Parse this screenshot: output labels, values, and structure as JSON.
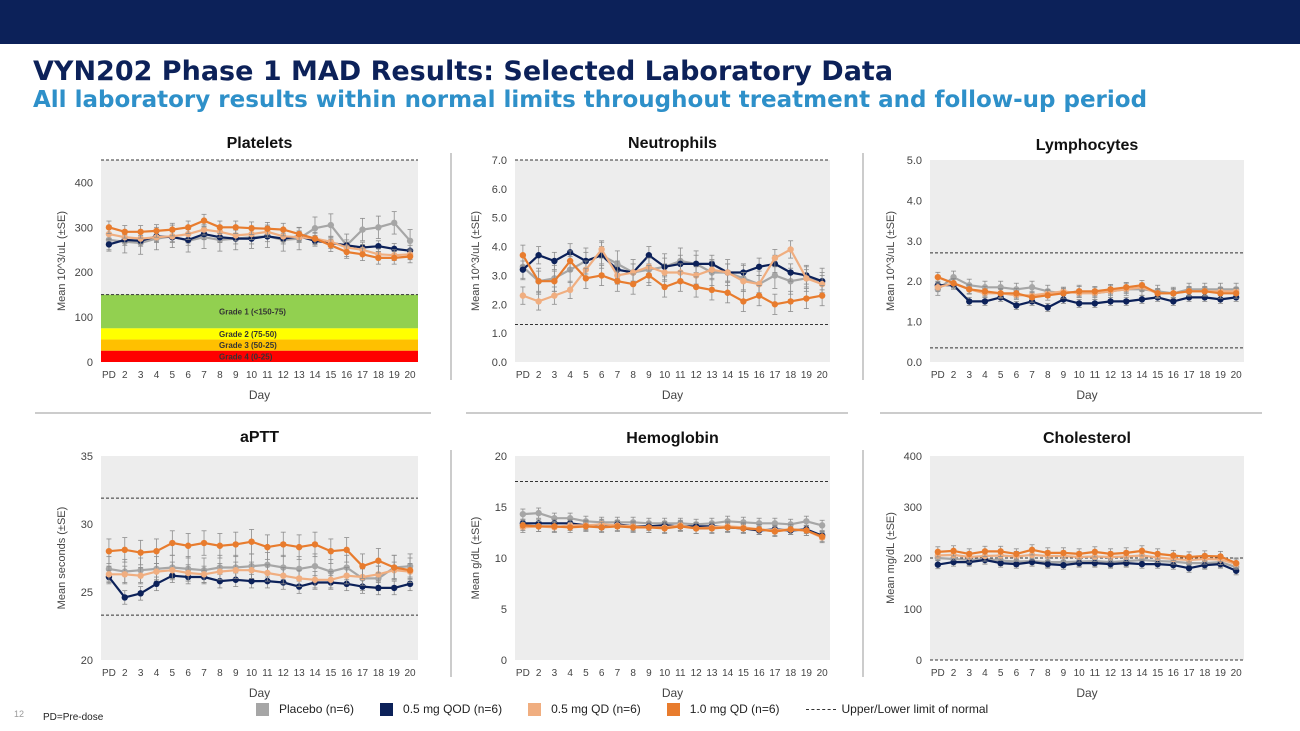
{
  "header": {
    "title": "VYN202 Phase 1 MAD Results:  Selected Laboratory Data",
    "subtitle": "All laboratory results within normal limits throughout treatment and follow-up period"
  },
  "footer": {
    "slide_number": "12",
    "note": "PD=Pre-dose"
  },
  "legend": {
    "items": [
      {
        "label": "Placebo (n=6)",
        "color": "#a6a6a6"
      },
      {
        "label": "0.5 mg QOD (n=6)",
        "color": "#0c2159"
      },
      {
        "label": "0.5 mg QD (n=6)",
        "color": "#f0ae80"
      },
      {
        "label": "1.0 mg QD (n=6)",
        "color": "#e87c2e"
      }
    ],
    "limit_label": "Upper/Lower limit of normal"
  },
  "colors": {
    "placebo": "#a6a6a6",
    "qod_05": "#0c2159",
    "qd_05": "#f0ae80",
    "qd_10": "#e87c2e",
    "plot_bg": "#ededed"
  },
  "chart_data": [
    {
      "type": "line",
      "title": "Platelets",
      "xlabel": "Day",
      "ylabel": "Mean 10^3/uL (±SE)",
      "x": [
        "PD",
        "2",
        "3",
        "4",
        "5",
        "6",
        "7",
        "8",
        "9",
        "10",
        "11",
        "12",
        "13",
        "14",
        "15",
        "16",
        "17",
        "18",
        "19",
        "20"
      ],
      "yticks": [
        "0",
        "100",
        "200",
        "300",
        "400"
      ],
      "ylim": [
        0,
        450
      ],
      "reference_lines": [
        450,
        150
      ],
      "grade_bands": [
        {
          "label": "Grade 1 (<150-75)",
          "from": 75,
          "to": 150,
          "color": "#92d050"
        },
        {
          "label": "Grade 2 (75-50)",
          "from": 50,
          "to": 75,
          "color": "#ffff00"
        },
        {
          "label": "Grade 3 (50-25)",
          "from": 25,
          "to": 50,
          "color": "#ffc000"
        },
        {
          "label": "Grade 4 (0-25)",
          "from": 0,
          "to": 25,
          "color": "#ff0000"
        }
      ],
      "series": [
        {
          "name": "Placebo (n=6)",
          "values": [
            272,
            268,
            265,
            275,
            280,
            270,
            278,
            272,
            275,
            278,
            280,
            272,
            275,
            298,
            305,
            260,
            295,
            300,
            310,
            270
          ],
          "se": 25
        },
        {
          "name": "0.5 mg QOD (n=6)",
          "values": [
            262,
            272,
            270,
            280,
            278,
            272,
            285,
            278,
            275,
            275,
            280,
            275,
            280,
            270,
            265,
            260,
            255,
            258,
            252,
            248
          ],
          "se": 12
        },
        {
          "name": "0.5 mg QD (n=6)",
          "values": [
            285,
            278,
            275,
            278,
            280,
            285,
            295,
            290,
            282,
            285,
            290,
            280,
            278,
            275,
            268,
            255,
            250,
            240,
            238,
            240
          ],
          "se": 12
        },
        {
          "name": "1.0 mg QD (n=6)",
          "values": [
            300,
            290,
            290,
            292,
            295,
            300,
            315,
            300,
            300,
            298,
            297,
            295,
            285,
            275,
            260,
            245,
            240,
            232,
            232,
            235
          ],
          "se": 14
        }
      ]
    },
    {
      "type": "line",
      "title": "Neutrophils",
      "xlabel": "Day",
      "ylabel": "Mean 10^3/uL (±SE)",
      "x": [
        "PD",
        "2",
        "3",
        "4",
        "5",
        "6",
        "7",
        "8",
        "9",
        "10",
        "11",
        "12",
        "13",
        "14",
        "15",
        "16",
        "17",
        "18",
        "19",
        "20"
      ],
      "yticks": [
        "0.0",
        "1.0",
        "2.0",
        "3.0",
        "4.0",
        "5.0",
        "6.0",
        "7.0"
      ],
      "ylim": [
        0,
        7
      ],
      "reference_lines": [
        7.0,
        1.3
      ],
      "series": [
        {
          "name": "Placebo (n=6)",
          "values": [
            3.3,
            2.8,
            2.9,
            3.2,
            3.5,
            3.7,
            3.4,
            3.1,
            3.2,
            3.3,
            3.5,
            3.4,
            3.1,
            3.1,
            2.9,
            2.7,
            3.0,
            2.8,
            2.9,
            2.8
          ],
          "se": 0.45
        },
        {
          "name": "0.5 mg QOD (n=6)",
          "values": [
            3.2,
            3.7,
            3.5,
            3.8,
            3.5,
            3.7,
            3.2,
            3.1,
            3.7,
            3.3,
            3.4,
            3.4,
            3.4,
            3.1,
            3.1,
            3.3,
            3.4,
            3.1,
            3.0,
            2.8
          ],
          "se": 0.3
        },
        {
          "name": "0.5 mg QD (n=6)",
          "values": [
            2.3,
            2.1,
            2.3,
            2.5,
            3.2,
            3.9,
            3.0,
            3.1,
            3.3,
            3.1,
            3.1,
            3.0,
            3.2,
            3.1,
            2.8,
            2.7,
            3.6,
            3.9,
            2.9,
            2.7
          ],
          "se": 0.3
        },
        {
          "name": "1.0 mg QD (n=6)",
          "values": [
            3.7,
            2.8,
            2.8,
            3.5,
            2.9,
            3.0,
            2.8,
            2.7,
            3.0,
            2.6,
            2.8,
            2.6,
            2.5,
            2.4,
            2.1,
            2.3,
            2.0,
            2.1,
            2.2,
            2.3
          ],
          "se": 0.35
        }
      ]
    },
    {
      "type": "line",
      "title": "Lymphocytes",
      "xlabel": "Day",
      "ylabel": "Mean 10^3/uL (±SE)",
      "x": [
        "PD",
        "2",
        "3",
        "4",
        "5",
        "6",
        "7",
        "8",
        "9",
        "10",
        "11",
        "12",
        "13",
        "14",
        "15",
        "16",
        "17",
        "18",
        "19",
        "20"
      ],
      "yticks": [
        "0.0",
        "1.0",
        "2.0",
        "3.0",
        "4.0",
        "5.0"
      ],
      "ylim": [
        0,
        5
      ],
      "reference_lines": [
        2.7,
        0.35
      ],
      "series": [
        {
          "name": "Placebo (n=6)",
          "values": [
            1.8,
            2.1,
            1.9,
            1.85,
            1.85,
            1.8,
            1.85,
            1.75,
            1.7,
            1.75,
            1.7,
            1.75,
            1.8,
            1.8,
            1.75,
            1.7,
            1.8,
            1.8,
            1.8,
            1.8
          ],
          "se": 0.15
        },
        {
          "name": "0.5 mg QOD (n=6)",
          "values": [
            1.9,
            1.9,
            1.5,
            1.5,
            1.6,
            1.4,
            1.5,
            1.35,
            1.55,
            1.45,
            1.45,
            1.5,
            1.5,
            1.55,
            1.6,
            1.5,
            1.6,
            1.6,
            1.55,
            1.6
          ],
          "se": 0.1
        },
        {
          "name": "0.5 mg QD (n=6)",
          "values": [
            1.85,
            1.95,
            1.8,
            1.7,
            1.7,
            1.65,
            1.65,
            1.7,
            1.75,
            1.7,
            1.7,
            1.75,
            1.8,
            1.85,
            1.7,
            1.7,
            1.75,
            1.75,
            1.75,
            1.75
          ],
          "se": 0.1
        },
        {
          "name": "1.0 mg QD (n=6)",
          "values": [
            2.1,
            1.95,
            1.8,
            1.75,
            1.7,
            1.7,
            1.6,
            1.65,
            1.7,
            1.75,
            1.75,
            1.8,
            1.85,
            1.9,
            1.7,
            1.7,
            1.75,
            1.75,
            1.7,
            1.7
          ],
          "se": 0.12
        }
      ]
    },
    {
      "type": "line",
      "title": "aPTT",
      "xlabel": "Day",
      "ylabel": "Mean seconds (±SE)",
      "x": [
        "PD",
        "2",
        "3",
        "4",
        "5",
        "6",
        "7",
        "8",
        "9",
        "10",
        "11",
        "12",
        "13",
        "14",
        "15",
        "16",
        "17",
        "18",
        "19",
        "20"
      ],
      "yticks": [
        "20",
        "25",
        "30",
        "35"
      ],
      "ylim": [
        20,
        35
      ],
      "reference_lines": [
        31.9,
        23.3
      ],
      "series": [
        {
          "name": "Placebo (n=6)",
          "values": [
            26.7,
            26.5,
            26.6,
            26.7,
            26.8,
            26.7,
            26.6,
            26.8,
            26.8,
            26.9,
            27.0,
            26.8,
            26.7,
            26.9,
            26.5,
            26.8,
            26.0,
            26.0,
            26.8,
            26.9
          ],
          "se": 0.9
        },
        {
          "name": "0.5 mg QOD (n=6)",
          "values": [
            26.1,
            24.6,
            24.9,
            25.6,
            26.2,
            26.1,
            26.1,
            25.8,
            25.9,
            25.8,
            25.8,
            25.7,
            25.4,
            25.7,
            25.7,
            25.6,
            25.4,
            25.3,
            25.3,
            25.6
          ],
          "se": 0.5
        },
        {
          "name": "0.5 mg QD (n=6)",
          "values": [
            26.3,
            26.3,
            26.2,
            26.5,
            26.6,
            26.4,
            26.3,
            26.5,
            26.6,
            26.6,
            26.4,
            26.2,
            26.0,
            25.9,
            25.9,
            26.2,
            26.1,
            26.3,
            26.6,
            26.5
          ],
          "se": 0.6
        },
        {
          "name": "1.0 mg QD (n=6)",
          "values": [
            28.0,
            28.1,
            27.9,
            28.0,
            28.6,
            28.4,
            28.6,
            28.4,
            28.5,
            28.7,
            28.3,
            28.5,
            28.3,
            28.5,
            28.0,
            28.1,
            26.9,
            27.3,
            26.8,
            26.6
          ],
          "se": 0.9
        }
      ]
    },
    {
      "type": "line",
      "title": "Hemoglobin",
      "xlabel": "Day",
      "ylabel": "Mean g/dL (±SE)",
      "x": [
        "PD",
        "2",
        "3",
        "4",
        "5",
        "6",
        "7",
        "8",
        "9",
        "10",
        "11",
        "12",
        "13",
        "14",
        "15",
        "16",
        "17",
        "18",
        "19",
        "20"
      ],
      "yticks": [
        "0",
        "5",
        "10",
        "15",
        "20"
      ],
      "ylim": [
        0,
        20
      ],
      "reference_lines": [
        17.5
      ],
      "series": [
        {
          "name": "Placebo (n=6)",
          "values": [
            14.3,
            14.4,
            13.9,
            13.9,
            13.6,
            13.5,
            13.5,
            13.5,
            13.4,
            13.4,
            13.4,
            13.3,
            13.4,
            13.6,
            13.5,
            13.4,
            13.4,
            13.3,
            13.6,
            13.2
          ],
          "se": 0.5
        },
        {
          "name": "0.5 mg QOD (n=6)",
          "values": [
            13.4,
            13.4,
            13.4,
            13.4,
            13.2,
            13.0,
            13.3,
            13.1,
            13.1,
            13.2,
            13.1,
            13.1,
            13.1,
            13.0,
            12.9,
            12.7,
            12.8,
            12.7,
            12.8,
            12.2
          ],
          "se": 0.4
        },
        {
          "name": "0.5 mg QD (n=6)",
          "values": [
            13.0,
            13.1,
            13.0,
            13.2,
            13.2,
            13.3,
            13.2,
            13.1,
            13.0,
            13.0,
            13.2,
            12.9,
            13.0,
            13.1,
            13.0,
            12.8,
            12.7,
            12.8,
            12.7,
            12.0
          ],
          "se": 0.5
        },
        {
          "name": "1.0 mg QD (n=6)",
          "values": [
            13.2,
            13.1,
            13.1,
            13.0,
            13.1,
            13.0,
            13.1,
            13.0,
            13.0,
            12.9,
            13.1,
            12.9,
            12.9,
            13.0,
            12.9,
            12.8,
            12.6,
            12.8,
            12.7,
            12.1
          ],
          "se": 0.5
        }
      ]
    },
    {
      "type": "line",
      "title": "Cholesterol",
      "xlabel": "Day",
      "ylabel": "Mean mg/dL (±SE)",
      "x": [
        "PD",
        "2",
        "3",
        "4",
        "5",
        "6",
        "7",
        "8",
        "9",
        "10",
        "11",
        "12",
        "13",
        "14",
        "15",
        "16",
        "17",
        "18",
        "19",
        "20"
      ],
      "yticks": [
        "0",
        "100",
        "200",
        "300",
        "400"
      ],
      "ylim": [
        0,
        400
      ],
      "reference_lines": [
        200,
        0
      ],
      "series": [
        {
          "name": "Placebo (n=6)",
          "values": [
            200,
            198,
            196,
            198,
            195,
            193,
            194,
            192,
            192,
            193,
            194,
            192,
            194,
            196,
            194,
            193,
            190,
            190,
            192,
            182
          ],
          "se": 10
        },
        {
          "name": "0.5 mg QOD (n=6)",
          "values": [
            187,
            192,
            192,
            196,
            190,
            188,
            192,
            188,
            186,
            190,
            190,
            188,
            190,
            188,
            188,
            186,
            180,
            186,
            188,
            175
          ],
          "se": 8
        },
        {
          "name": "0.5 mg QD (n=6)",
          "values": [
            205,
            206,
            202,
            204,
            205,
            203,
            206,
            204,
            204,
            202,
            203,
            202,
            203,
            205,
            201,
            198,
            196,
            198,
            197,
            188
          ],
          "se": 10
        },
        {
          "name": "1.0 mg QD (n=6)",
          "values": [
            212,
            214,
            208,
            213,
            213,
            208,
            216,
            210,
            210,
            208,
            212,
            208,
            210,
            214,
            208,
            205,
            202,
            204,
            203,
            190
          ],
          "se": 10
        }
      ]
    }
  ]
}
